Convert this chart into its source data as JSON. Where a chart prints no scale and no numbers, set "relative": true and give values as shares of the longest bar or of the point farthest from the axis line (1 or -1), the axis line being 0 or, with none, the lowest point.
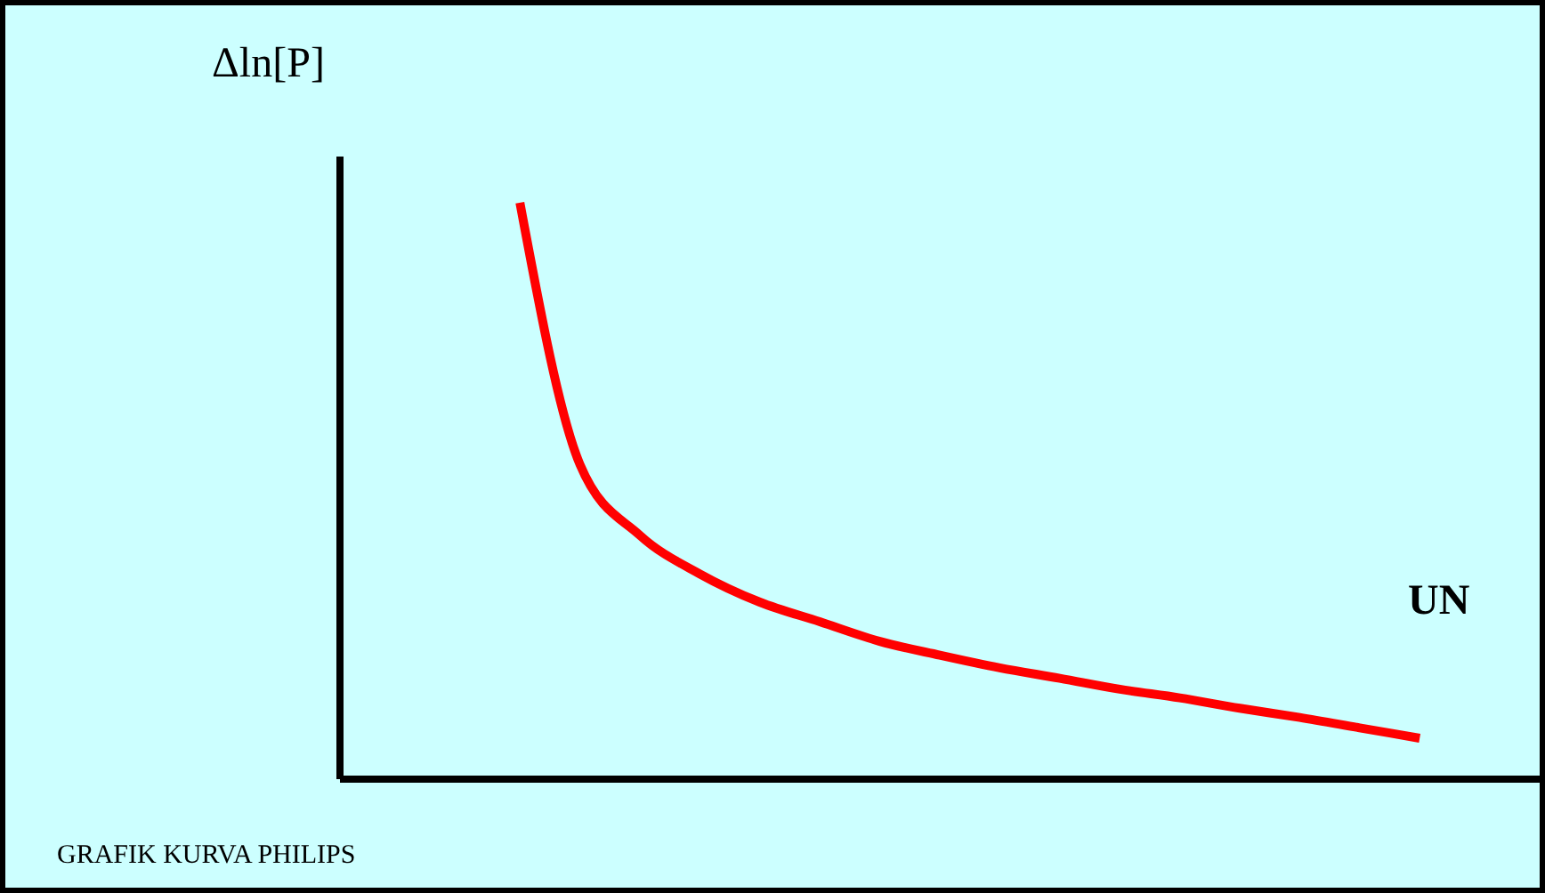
{
  "chart_data": {
    "type": "line",
    "relative": true,
    "ylabel": "Δln[P]",
    "xlabel": "UN",
    "annotations": [
      "GRAFIK KURVA PHILIPS"
    ],
    "categories": [
      null,
      null,
      null,
      null,
      null,
      null,
      null,
      null,
      null,
      null,
      null,
      null,
      null,
      null,
      null,
      null,
      null,
      null,
      null,
      null,
      null
    ],
    "series": [
      {
        "color": "#ff0000",
        "values": [
          null,
          null,
          null,
          1.0,
          0.546,
          0.423,
          0.356,
          0.307,
          0.273,
          0.239,
          0.215,
          0.193,
          0.175,
          0.156,
          0.141,
          0.123,
          0.107,
          0.089,
          0.071,
          null,
          null
        ]
      }
    ],
    "grid": false,
    "legend": false,
    "marker": "none",
    "line_style": "solid"
  }
}
